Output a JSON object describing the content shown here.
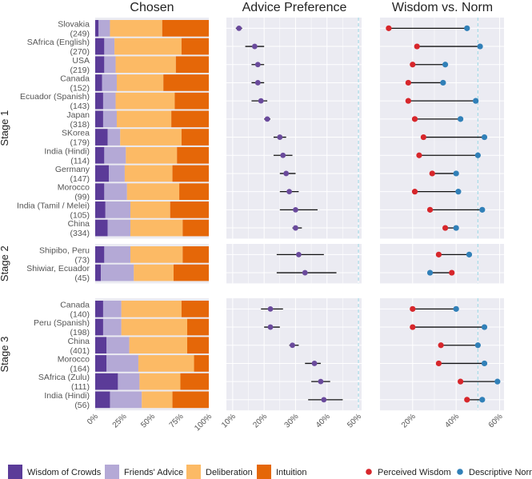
{
  "chart_data": {
    "type": "faceted-bar-and-dot",
    "titles": [
      "Chosen",
      "Advice Preference",
      "Wisdom vs. Norm"
    ],
    "stages": [
      "Stage 1",
      "Stage 2",
      "Stage 3"
    ],
    "rows": [
      {
        "stage": 0,
        "label": "Slovakia",
        "n": "(249)",
        "chosen": [
          3,
          10,
          46,
          41
        ],
        "advice": {
          "mean": 12,
          "lo": 11,
          "hi": 13
        },
        "perceived": 9,
        "descriptive": 45
      },
      {
        "stage": 0,
        "label": "SAfrica (English)",
        "n": "(270)",
        "chosen": [
          8,
          9,
          59,
          24
        ],
        "advice": {
          "mean": 17,
          "lo": 14,
          "hi": 20
        },
        "perceived": 22,
        "descriptive": 51
      },
      {
        "stage": 0,
        "label": "USA",
        "n": "(219)",
        "chosen": [
          8,
          10,
          53,
          29
        ],
        "advice": {
          "mean": 18,
          "lo": 16,
          "hi": 20
        },
        "perceived": 20,
        "descriptive": 35
      },
      {
        "stage": 0,
        "label": "Canada",
        "n": "(152)",
        "chosen": [
          6,
          13,
          41,
          40
        ],
        "advice": {
          "mean": 18,
          "lo": 16,
          "hi": 20
        },
        "perceived": 18,
        "descriptive": 34
      },
      {
        "stage": 0,
        "label": "Ecuador (Spanish)",
        "n": "(143)",
        "chosen": [
          7,
          11,
          52,
          30
        ],
        "advice": {
          "mean": 19,
          "lo": 16,
          "hi": 21
        },
        "perceived": 18,
        "descriptive": 49
      },
      {
        "stage": 0,
        "label": "Japan",
        "n": "(318)",
        "chosen": [
          7,
          12,
          48,
          33
        ],
        "advice": {
          "mean": 21,
          "lo": 20,
          "hi": 22
        },
        "perceived": 21,
        "descriptive": 42
      },
      {
        "stage": 0,
        "label": "SKorea",
        "n": "(179)",
        "chosen": [
          11,
          11,
          54,
          24
        ],
        "advice": {
          "mean": 25,
          "lo": 23,
          "hi": 27
        },
        "perceived": 25,
        "descriptive": 53
      },
      {
        "stage": 0,
        "label": "India (Hindi)",
        "n": "(114)",
        "chosen": [
          8,
          19,
          45,
          28
        ],
        "advice": {
          "mean": 26,
          "lo": 23,
          "hi": 29
        },
        "perceived": 23,
        "descriptive": 50
      },
      {
        "stage": 0,
        "label": "Germany",
        "n": "(147)",
        "chosen": [
          12,
          14,
          42,
          32
        ],
        "advice": {
          "mean": 27,
          "lo": 25,
          "hi": 30
        },
        "perceived": 29,
        "descriptive": 40
      },
      {
        "stage": 0,
        "label": "Morocco",
        "n": "(99)",
        "chosen": [
          8,
          20,
          46,
          26
        ],
        "advice": {
          "mean": 28,
          "lo": 25,
          "hi": 31
        },
        "perceived": 21,
        "descriptive": 41
      },
      {
        "stage": 0,
        "label": "India (Tamil / Melei)",
        "n": "(105)",
        "chosen": [
          9,
          22,
          35,
          34
        ],
        "advice": {
          "mean": 30,
          "lo": 25,
          "hi": 37
        },
        "perceived": 28,
        "descriptive": 52
      },
      {
        "stage": 0,
        "label": "China",
        "n": "(334)",
        "chosen": [
          11,
          20,
          46,
          23
        ],
        "advice": {
          "mean": 30,
          "lo": 29,
          "hi": 32
        },
        "perceived": 35,
        "descriptive": 40
      },
      {
        "stage": 1,
        "label": "Shipibo, Peru",
        "n": "(73)",
        "chosen": [
          8,
          23,
          46,
          23
        ],
        "advice": {
          "mean": 31,
          "lo": 24,
          "hi": 39
        },
        "perceived": 32,
        "descriptive": 46
      },
      {
        "stage": 1,
        "label": "Shiwiar, Ecuador",
        "n": "(45)",
        "chosen": [
          5,
          29,
          35,
          31
        ],
        "advice": {
          "mean": 33,
          "lo": 24,
          "hi": 43
        },
        "perceived": 38,
        "descriptive": 28
      },
      {
        "stage": 2,
        "label": "Canada",
        "n": "(140)",
        "chosen": [
          7,
          16,
          53,
          24
        ],
        "advice": {
          "mean": 22,
          "lo": 19,
          "hi": 26
        },
        "perceived": 20,
        "descriptive": 40
      },
      {
        "stage": 2,
        "label": "Peru (Spanish)",
        "n": "(198)",
        "chosen": [
          7,
          16,
          58,
          19
        ],
        "advice": {
          "mean": 22,
          "lo": 20,
          "hi": 25
        },
        "perceived": 20,
        "descriptive": 53
      },
      {
        "stage": 2,
        "label": "China",
        "n": "(401)",
        "chosen": [
          10,
          20,
          51,
          19
        ],
        "advice": {
          "mean": 29,
          "lo": 28,
          "hi": 31
        },
        "perceived": 33,
        "descriptive": 50
      },
      {
        "stage": 2,
        "label": "Morocco",
        "n": "(164)",
        "chosen": [
          10,
          28,
          49,
          13
        ],
        "advice": {
          "mean": 36,
          "lo": 33,
          "hi": 38
        },
        "perceived": 32,
        "descriptive": 53
      },
      {
        "stage": 2,
        "label": "SAfrica (Zulu)",
        "n": "(111)",
        "chosen": [
          20,
          19,
          36,
          25
        ],
        "advice": {
          "mean": 38,
          "lo": 35,
          "hi": 41
        },
        "perceived": 42,
        "descriptive": 59
      },
      {
        "stage": 2,
        "label": "India (Hindi)",
        "n": "(56)",
        "chosen": [
          13,
          28,
          27,
          32
        ],
        "advice": {
          "mean": 39,
          "lo": 34,
          "hi": 45
        },
        "perceived": 45,
        "descriptive": 52
      }
    ],
    "panels": {
      "chosen": {
        "xlim": [
          0,
          100
        ],
        "ticks": [
          "0%",
          "25%",
          "50%",
          "75%",
          "100%"
        ],
        "tick_values": [
          0,
          25,
          50,
          75,
          100
        ]
      },
      "advice": {
        "xlim": [
          8,
          51
        ],
        "ticks": [
          "10%",
          "20%",
          "30%",
          "40%",
          "50%"
        ],
        "tick_values": [
          10,
          20,
          30,
          40,
          50
        ],
        "reference_line": 50
      },
      "wisdom": {
        "xlim": [
          5,
          62
        ],
        "ticks": [
          "20%",
          "40%",
          "60%"
        ],
        "tick_values": [
          20,
          40,
          60
        ],
        "reference_line": 50
      }
    },
    "chosen_categories": [
      "Wisdom of Crowds",
      "Friends' Advice",
      "Deliberation",
      "Intuition"
    ],
    "colors": {
      "wisdom_of_crowds": "#5b3b98",
      "friends_advice": "#b4a9d6",
      "deliberation": "#fcba65",
      "intuition": "#e56708",
      "advice_dot": "#6a4a9c",
      "perceived": "#d7262b",
      "descriptive": "#3180b8",
      "reference": "#a8dce8",
      "panel_bg": "#ebebf2",
      "grid": "#ffffff"
    },
    "legend": {
      "items": [
        "Wisdom of Crowds",
        "Friends' Advice",
        "Deliberation",
        "Intuition",
        "Perceived Wisdom",
        "Descriptive Norm"
      ],
      "position": "bottom"
    }
  }
}
